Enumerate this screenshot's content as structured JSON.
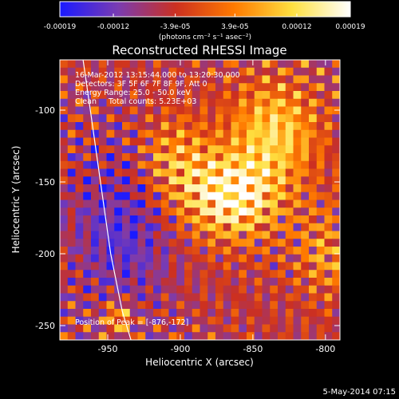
{
  "chart_data": {
    "type": "heatmap",
    "title": "Reconstructed RHESSI Image",
    "xlabel": "Heliocentric X (arcsec)",
    "ylabel": "Heliocentric Y (arcsec)",
    "xlim": [
      -983,
      -790
    ],
    "ylim": [
      -260,
      -65
    ],
    "x_ticks": [
      -950,
      -900,
      -850,
      -800
    ],
    "y_ticks": [
      -100,
      -150,
      -200,
      -250
    ],
    "x_tick_labels": [
      "-950",
      "-900",
      "-850",
      "-800"
    ],
    "y_tick_labels": [
      "-100",
      "-150",
      "-200",
      "-250"
    ],
    "colorbar": {
      "range": [
        -0.00019,
        0.00019
      ],
      "tick_values": [
        -0.00019,
        -0.00012,
        -3.9e-05,
        3.9e-05,
        0.00012,
        0.00019
      ],
      "tick_labels": [
        "-0.00019",
        "-0.00012",
        "-3.9e-05",
        "3.9e-05",
        "0.00012",
        "0.00019"
      ],
      "unit_label": "(photons cm⁻² s⁻¹ asec⁻²)",
      "colormap": [
        "#1a1aff",
        "#7a3cb2",
        "#cc3020",
        "#ff7a00",
        "#ffe040",
        "#ffffff"
      ]
    },
    "annotations": {
      "time_range": "16-Mar-2012 13:15:44.000 to 13:20:30.000",
      "detectors": "Detectors: 3F 5F 6F 7F 8F 9F, Att 0",
      "energy_range": "Energy Range: 25.0 - 50.0 keV",
      "method": "Clean     Total counts: 5.23E+03",
      "peak": "Position of Peak = [-876,-172]"
    },
    "peak_position": [
      -876,
      -172
    ],
    "total_counts": 5230,
    "energy_range_keV": [
      25.0,
      50.0
    ],
    "limb_curve": [
      [
        -967,
        -65
      ],
      [
        -962,
        -100
      ],
      [
        -955,
        -150
      ],
      [
        -948,
        -200
      ],
      [
        -940,
        -240
      ],
      [
        -934,
        -260
      ]
    ],
    "grid": false
  },
  "footer": {
    "date": "5-May-2014 07:15"
  }
}
